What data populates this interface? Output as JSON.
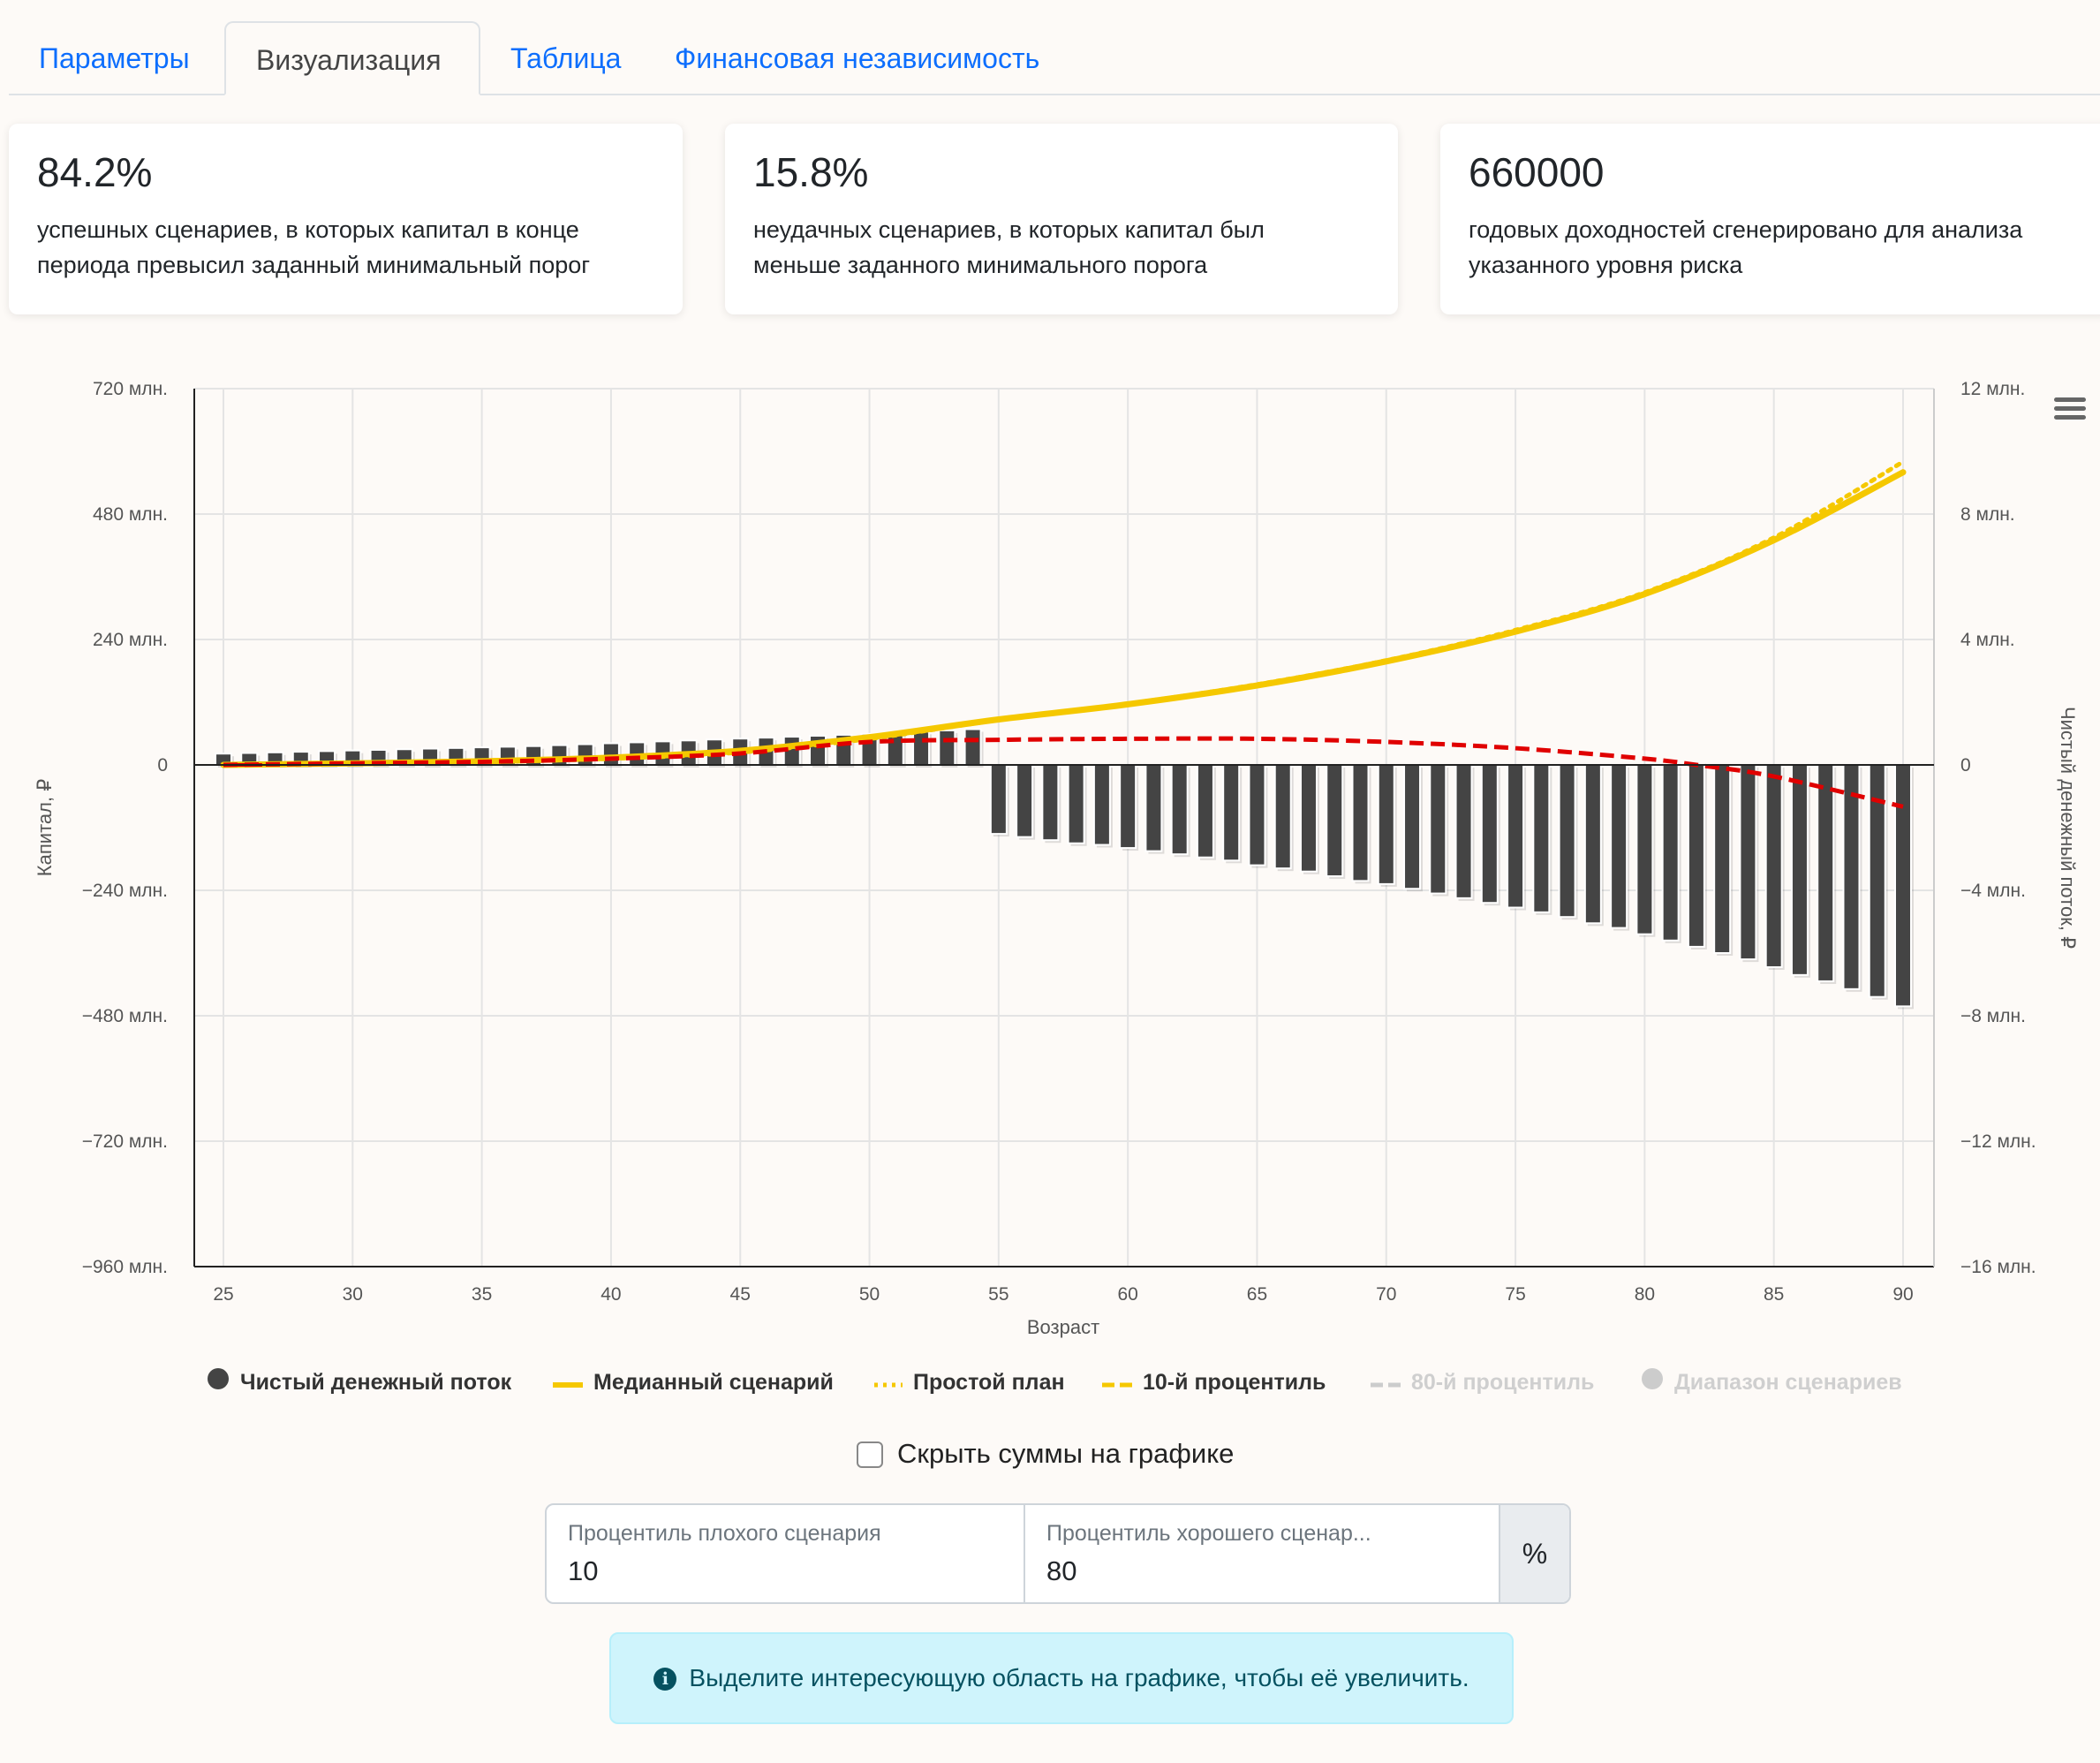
{
  "tabs": [
    {
      "label": "Параметры",
      "active": false
    },
    {
      "label": "Визуализация",
      "active": true
    },
    {
      "label": "Таблица",
      "active": false
    },
    {
      "label": "Финансовая независимость",
      "active": false
    }
  ],
  "stats": [
    {
      "value": "84.2%",
      "line1": "успешных сценариев, в которых капитал в конце",
      "line2": "периода превысил заданный минимальный порог"
    },
    {
      "value": "15.8%",
      "line1": "неудачных сценариев, в которых капитал был",
      "line2": "меньше заданного минимального порога"
    },
    {
      "value": "660000",
      "line1": "годовых доходностей сгенерировано для анализа",
      "line2": "указанного уровня риска"
    }
  ],
  "chart_data": {
    "type": "line",
    "xlabel": "Возраст",
    "ylabel_left": "Капитал, ₽",
    "ylabel_right": "Чистый денежный поток, ₽",
    "x_range": [
      25,
      90
    ],
    "x_ticks": [
      "25",
      "30",
      "35",
      "40",
      "45",
      "50",
      "55",
      "60",
      "65",
      "70",
      "75",
      "80",
      "85",
      "90"
    ],
    "ylim_left": [
      -960,
      720
    ],
    "ylim_right": [
      -16,
      12
    ],
    "y_ticks_left": [
      "720 млн.",
      "480 млн.",
      "240 млн.",
      "0",
      "−240 млн.",
      "−480 млн.",
      "−720 млн.",
      "−960 млн."
    ],
    "y_ticks_right": [
      "12 млн.",
      "8 млн.",
      "4 млн.",
      "0",
      "−4 млн.",
      "−8 млн.",
      "−12 млн.",
      "−16 млн."
    ],
    "units": "млн. ₽",
    "grid": true,
    "legend_position": "bottom",
    "legend": [
      {
        "name": "Чистый денежный поток",
        "symbol": "circle",
        "color": "#444444",
        "visible": true
      },
      {
        "name": "Медианный сценарий",
        "symbol": "solid",
        "color": "#f5c800",
        "visible": true
      },
      {
        "name": "Простой план",
        "symbol": "dotted",
        "color": "#f5c800",
        "visible": true
      },
      {
        "name": "10-й процентиль",
        "symbol": "dashed",
        "color": "#f5c800",
        "visible": true
      },
      {
        "name": "80-й процентиль",
        "symbol": "dashed",
        "color": "#cccccc",
        "visible": false
      },
      {
        "name": "Диапазон сценариев",
        "symbol": "circle",
        "color": "#cccccc",
        "visible": false
      }
    ],
    "series": [
      {
        "name": "Чистый денежный поток",
        "type": "bar",
        "axis": "right",
        "color": "#444444",
        "x": [
          25,
          26,
          27,
          28,
          29,
          30,
          31,
          32,
          33,
          34,
          35,
          36,
          37,
          38,
          39,
          40,
          41,
          42,
          43,
          44,
          45,
          46,
          47,
          48,
          49,
          50,
          51,
          52,
          53,
          54,
          55,
          56,
          57,
          58,
          59,
          60,
          61,
          62,
          63,
          64,
          65,
          66,
          67,
          68,
          69,
          70,
          71,
          72,
          73,
          74,
          75,
          76,
          77,
          78,
          79,
          80,
          81,
          82,
          83,
          84,
          85,
          86,
          87,
          88,
          89,
          90
        ],
        "values": [
          0.36,
          0.38,
          0.4,
          0.42,
          0.44,
          0.46,
          0.48,
          0.5,
          0.52,
          0.54,
          0.56,
          0.58,
          0.6,
          0.63,
          0.66,
          0.69,
          0.72,
          0.75,
          0.78,
          0.81,
          0.84,
          0.87,
          0.9,
          0.93,
          0.96,
          0.99,
          1.02,
          1.06,
          1.1,
          1.14,
          -2.2,
          -2.3,
          -2.4,
          -2.5,
          -2.55,
          -2.65,
          -2.75,
          -2.85,
          -2.95,
          -3.05,
          -3.2,
          -3.3,
          -3.4,
          -3.55,
          -3.7,
          -3.8,
          -3.95,
          -4.1,
          -4.25,
          -4.4,
          -4.55,
          -4.7,
          -4.85,
          -5.05,
          -5.2,
          -5.4,
          -5.6,
          -5.8,
          -6.0,
          -6.2,
          -6.45,
          -6.7,
          -6.9,
          -7.15,
          -7.4,
          -7.7
        ]
      },
      {
        "name": "Медианный сценарий",
        "type": "line",
        "axis": "left",
        "color": "#f5c800",
        "x": [
          25,
          30,
          35,
          40,
          45,
          50,
          55,
          60,
          65,
          70,
          75,
          80,
          85,
          90
        ],
        "values": [
          0,
          3,
          7,
          14,
          27,
          53,
          87,
          116,
          152,
          198,
          255,
          327,
          430,
          560
        ]
      },
      {
        "name": "Простой план",
        "type": "line",
        "axis": "left",
        "color": "#f5c800",
        "x": [
          25,
          30,
          35,
          40,
          45,
          50,
          55,
          60,
          65,
          70,
          75,
          80,
          85,
          90
        ],
        "values": [
          0,
          2,
          6,
          12,
          24,
          50,
          86,
          117,
          154,
          200,
          258,
          330,
          435,
          580
        ]
      },
      {
        "name": "10-й процентиль",
        "type": "line",
        "axis": "left",
        "color": "#f5c800",
        "x": [
          25,
          30,
          35,
          40,
          45,
          50,
          55,
          60,
          65,
          70,
          75,
          80,
          82,
          85,
          90
        ],
        "values": [
          0,
          3,
          6,
          12,
          22,
          44,
          48,
          50,
          50,
          44,
          32,
          12,
          0,
          -22,
          -80
        ]
      }
    ]
  },
  "hide_sums": {
    "label": "Скрыть суммы на графике",
    "checked": false
  },
  "percentiles": {
    "bad_label": "Процентиль плохого сценария",
    "bad_value": "10",
    "good_label": "Процентиль хорошего сценар...",
    "good_value": "80",
    "suffix": "%"
  },
  "info": {
    "text": "Выделите интересующую область на графике, чтобы её увеличить.",
    "icon": "info-icon"
  }
}
